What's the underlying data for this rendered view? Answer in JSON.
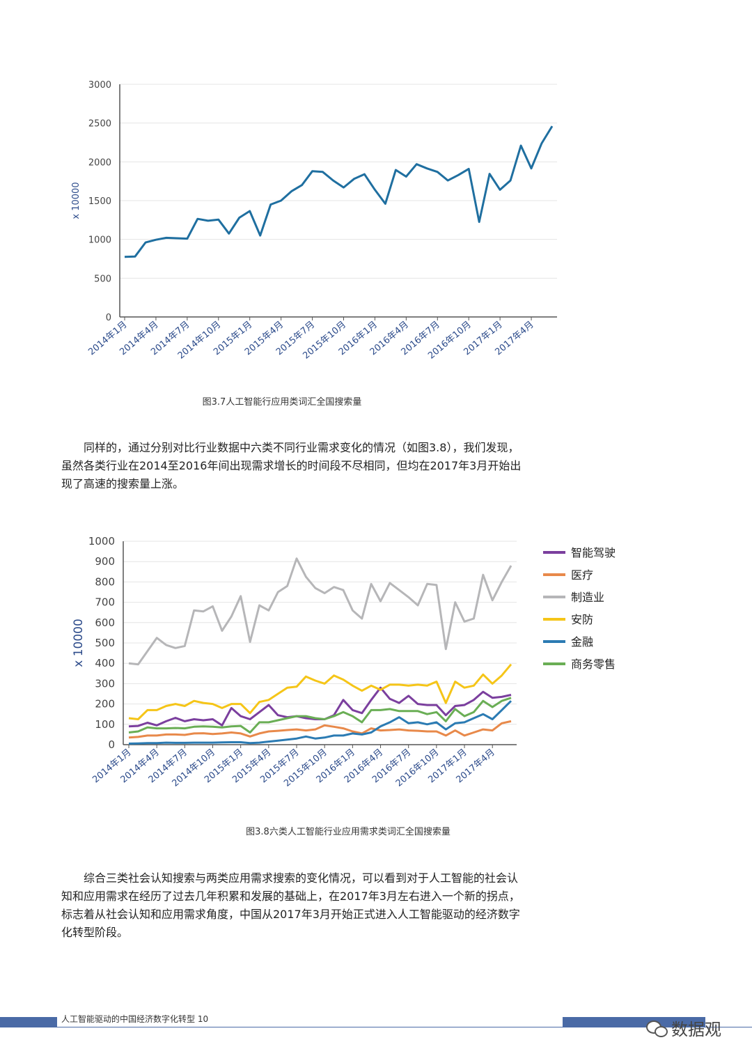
{
  "chart_data": [
    {
      "type": "line",
      "ylabel": "x 10000",
      "ylim": [
        0,
        3000
      ],
      "yticks": [
        0,
        500,
        1000,
        1500,
        2000,
        2500,
        3000
      ],
      "grid": true,
      "x_tick_labels": [
        "2014年1月",
        "2014年4月",
        "2014年7月",
        "2014年10月",
        "2015年1月",
        "2015年4月",
        "2015年7月",
        "2015年10月",
        "2016年1月",
        "2016年4月",
        "2016年7月",
        "2016年10月",
        "2017年1月",
        "2017年4月"
      ],
      "series": [
        {
          "color": "#1f6fa0",
          "values": [
            775,
            780,
            960,
            995,
            1020,
            1015,
            1010,
            1265,
            1240,
            1255,
            1075,
            1280,
            1365,
            1050,
            1450,
            1500,
            1620,
            1700,
            1880,
            1870,
            1760,
            1670,
            1780,
            1840,
            1640,
            1460,
            1895,
            1810,
            1970,
            1915,
            1870,
            1760,
            1830,
            1910,
            1225,
            1845,
            1640,
            1760,
            2210,
            1915,
            2240,
            2460
          ]
        }
      ]
    },
    {
      "type": "line",
      "ylabel": "x 10000",
      "ylim": [
        0,
        1000
      ],
      "yticks": [
        0,
        100,
        200,
        300,
        400,
        500,
        600,
        700,
        800,
        900,
        1000
      ],
      "grid": true,
      "legend_position": "right",
      "x_tick_labels": [
        "2014年1月",
        "2014年4月",
        "2014年7月",
        "2014年10月",
        "2015年1月",
        "2015年4月",
        "2015年7月",
        "2015年10月",
        "2016年1月",
        "2016年4月",
        "2016年7月",
        "2016年10月",
        "2017年1月",
        "2017年4月"
      ],
      "series": [
        {
          "name": "智能驾驶",
          "color": "#7b3f9e",
          "values": [
            90,
            92,
            108,
            95,
            115,
            132,
            115,
            125,
            120,
            125,
            95,
            180,
            140,
            125,
            160,
            195,
            145,
            135,
            140,
            130,
            125,
            125,
            145,
            220,
            170,
            155,
            220,
            280,
            225,
            205,
            240,
            200,
            195,
            195,
            145,
            190,
            195,
            220,
            260,
            230,
            235,
            245
          ]
        },
        {
          "name": "医疗",
          "color": "#e8894a",
          "values": [
            35,
            38,
            45,
            45,
            50,
            50,
            48,
            55,
            56,
            52,
            55,
            60,
            55,
            40,
            55,
            65,
            68,
            72,
            75,
            70,
            75,
            95,
            88,
            80,
            65,
            55,
            80,
            70,
            72,
            75,
            70,
            68,
            65,
            65,
            45,
            70,
            45,
            60,
            75,
            70,
            105,
            115
          ]
        },
        {
          "name": "制造业",
          "color": "#b6b6b8",
          "values": [
            400,
            395,
            460,
            525,
            490,
            475,
            485,
            660,
            655,
            680,
            560,
            630,
            730,
            505,
            685,
            660,
            750,
            780,
            915,
            825,
            770,
            745,
            775,
            760,
            660,
            620,
            790,
            705,
            795,
            760,
            725,
            685,
            790,
            785,
            470,
            700,
            605,
            620,
            835,
            710,
            800,
            880
          ]
        },
        {
          "name": "安防",
          "color": "#f5c518",
          "values": [
            130,
            125,
            170,
            170,
            190,
            200,
            190,
            215,
            205,
            200,
            180,
            200,
            200,
            155,
            210,
            220,
            250,
            280,
            285,
            335,
            315,
            300,
            340,
            320,
            290,
            265,
            290,
            270,
            295,
            295,
            290,
            295,
            290,
            310,
            205,
            310,
            280,
            290,
            345,
            300,
            340,
            395
          ]
        },
        {
          "name": "金融",
          "color": "#2b7bb3",
          "values": [
            5,
            6,
            8,
            8,
            10,
            9,
            9,
            10,
            10,
            10,
            11,
            12,
            12,
            8,
            10,
            15,
            20,
            25,
            30,
            40,
            30,
            35,
            45,
            45,
            55,
            50,
            60,
            90,
            110,
            135,
            105,
            110,
            100,
            110,
            75,
            105,
            110,
            130,
            150,
            125,
            170,
            215
          ]
        },
        {
          "name": "商务零售",
          "color": "#6aae55",
          "values": [
            60,
            65,
            85,
            80,
            80,
            82,
            80,
            88,
            90,
            88,
            85,
            90,
            92,
            60,
            110,
            110,
            120,
            130,
            140,
            140,
            130,
            125,
            140,
            160,
            140,
            110,
            170,
            170,
            175,
            165,
            165,
            165,
            150,
            160,
            115,
            175,
            140,
            160,
            215,
            185,
            215,
            230
          ]
        }
      ]
    }
  ],
  "caption1": "图3.7人工智能行应用类词汇全国搜索量",
  "caption2": "图3.8六类人工智能行业应用需求类词汇全国搜索量",
  "para1": [
    "同样的，通过分别对比行业数据中六类不同行业需求变化的情况（如图3.8），我们发现，",
    "虽然各类行业在2014至2016年间出现需求增长的时间段不尽相同，但均在2017年3月开始出",
    "现了高速的搜索量上涨。"
  ],
  "para2": [
    "综合三类社会认知搜索与两类应用需求搜索的变化情况，可以看到对于人工智能的社会认",
    "知和应用需求在经历了过去几年积累和发展的基础上，在2017年3月左右进入一个新的拐点，",
    "标志着从社会认知和应用需求角度，中国从2017年3月开始正式进入人工智能驱动的经济数字",
    "化转型阶段。"
  ],
  "footer": {
    "text": "人工智能驱动的中国经济数字化转型 10",
    "watermark": "数据观",
    "watermark_icon": "wechat-icon"
  }
}
